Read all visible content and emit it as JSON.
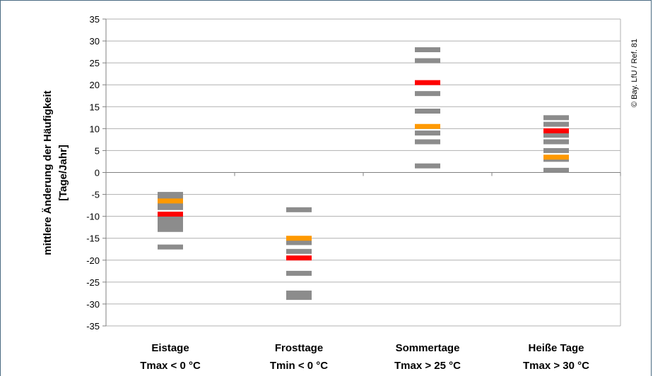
{
  "chart_data": {
    "type": "scatter",
    "title": "",
    "ylabel_lines": [
      "mittlere Änderung der Häufigkeit",
      "[Tage/Jahr]"
    ],
    "ylim": [
      -35,
      35
    ],
    "yticks": [
      35,
      30,
      25,
      20,
      15,
      10,
      5,
      0,
      -5,
      -10,
      -15,
      -20,
      -25,
      -30,
      -35
    ],
    "grid": true,
    "categories": [
      {
        "lines": [
          "Eistage",
          "Tmax < 0 °C"
        ]
      },
      {
        "lines": [
          "Frosttage",
          "Tmin < 0 °C"
        ]
      },
      {
        "lines": [
          "Sommertage",
          "Tmax > 25 °C"
        ]
      },
      {
        "lines": [
          "Heiße Tage",
          "Tmax > 30 °C"
        ]
      }
    ],
    "colors": {
      "gray": "#8c8c8c",
      "orange": "#ff9900",
      "red": "#ff0000"
    },
    "series": [
      {
        "color": "gray",
        "values": [
          [
            -5,
            -6,
            -7,
            -8,
            -10,
            -11,
            -12,
            -13,
            -17
          ],
          [
            -8.5,
            -16,
            -18,
            -23,
            -27.5,
            -28.5
          ],
          [
            28,
            25.5,
            18,
            14,
            9,
            7,
            1.5
          ],
          [
            12.5,
            11,
            8.5,
            7,
            5,
            3,
            0.5
          ]
        ]
      },
      {
        "color": "orange",
        "values": [
          [
            -6.5
          ],
          [
            -15
          ],
          [
            10.5
          ],
          [
            3.5
          ]
        ]
      },
      {
        "color": "red",
        "values": [
          [
            -9.5
          ],
          [
            -19.5
          ],
          [
            20.5
          ],
          [
            9.5
          ]
        ]
      }
    ],
    "annotation": "© Bay. LfU / Ref. 81"
  }
}
